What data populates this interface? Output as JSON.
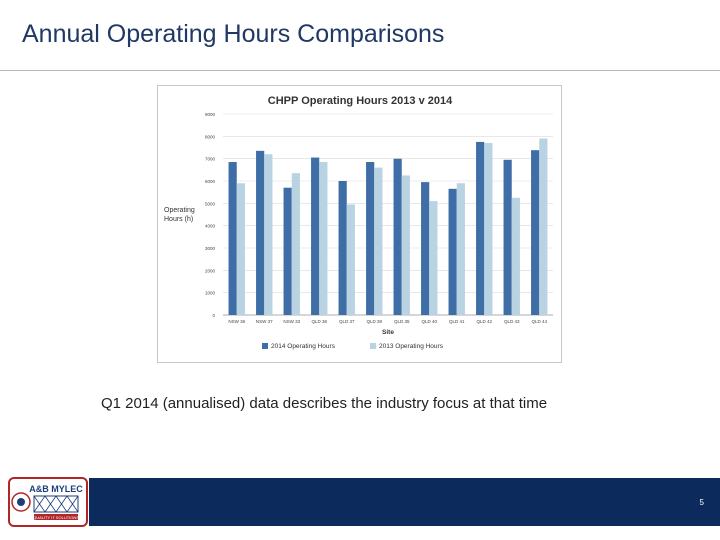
{
  "slide": {
    "title": "Annual Operating Hours Comparisons",
    "caption": "Q1 2014 (annualised) data describes the industry focus at that time",
    "page_number": "5"
  },
  "logo": {
    "name": "A&B MYLEC",
    "tagline": "QUALITY IT SOLUTIONS"
  },
  "colors": {
    "title": "#1f3864",
    "series_2014": "#3f6ea6",
    "series_2013": "#b9d3e3",
    "footer": "#0d2a5c",
    "logo_red": "#b0262b"
  },
  "chart_data": {
    "type": "bar",
    "title": "CHPP Operating Hours 2013 v 2014",
    "xlabel": "Site",
    "ylabel": "Operating Hours (h)",
    "ylim": [
      0,
      9000
    ],
    "yticks": [
      0,
      1000,
      2000,
      3000,
      4000,
      5000,
      6000,
      7000,
      8000,
      9000
    ],
    "categories": [
      "NSW 36",
      "NSW 37",
      "NSW 33",
      "QLD 36",
      "QLD 37",
      "QLD 38",
      "QLD 35",
      "QLD 40",
      "QLD 41",
      "QLD 42",
      "QLD 43",
      "QLD 44"
    ],
    "series": [
      {
        "name": "2014 Operating Hours",
        "values": [
          6850,
          7350,
          5700,
          7050,
          6000,
          6850,
          7000,
          5950,
          5650,
          7750,
          6950,
          7380
        ]
      },
      {
        "name": "2013 Operating Hours",
        "values": [
          5900,
          7200,
          6350,
          6850,
          4950,
          6600,
          6250,
          5100,
          5900,
          7700,
          5250,
          7900
        ]
      }
    ],
    "legend": "bottom",
    "grid": true
  }
}
